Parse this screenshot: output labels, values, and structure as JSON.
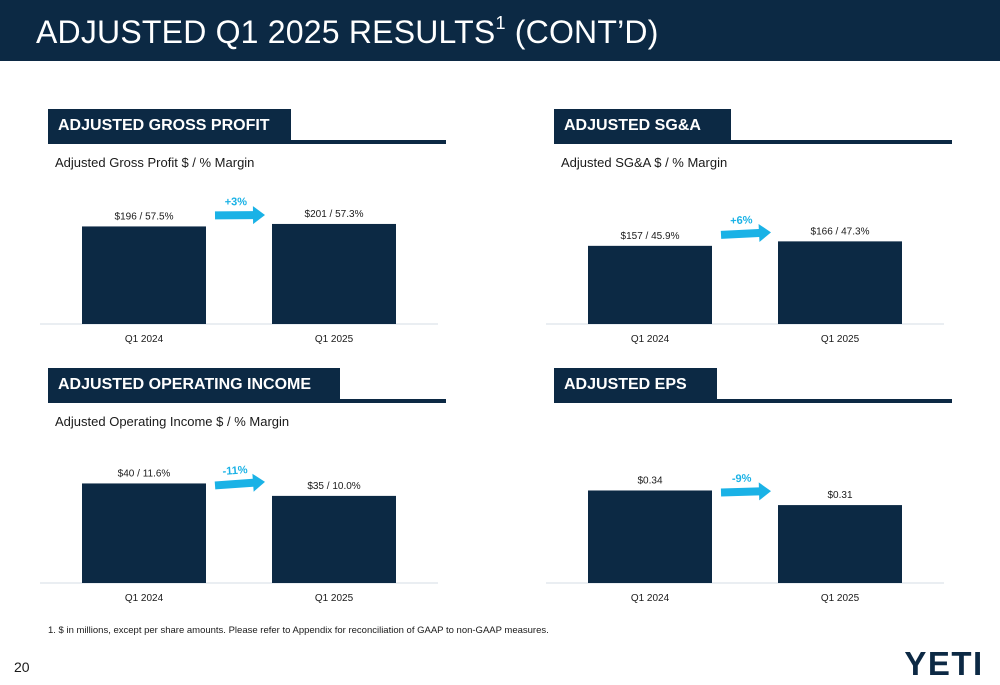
{
  "header": {
    "title": "ADJUSTED Q1 2025 RESULTS",
    "title_sup": "1",
    "title_suffix": " (CONT’D)"
  },
  "panels": [
    {
      "heading": "ADJUSTED GROSS PROFIT",
      "subtitle": "Adjusted Gross Profit $ / % Margin"
    },
    {
      "heading": "ADJUSTED SG&A",
      "subtitle": "Adjusted SG&A $ / % Margin"
    },
    {
      "heading": "ADJUSTED OPERATING INCOME",
      "subtitle": "Adjusted Operating Income $ / % Margin"
    },
    {
      "heading": "ADJUSTED EPS",
      "subtitle": ""
    }
  ],
  "chart_data": [
    {
      "type": "bar",
      "categories": [
        "Q1 2024",
        "Q1 2025"
      ],
      "values": [
        196,
        201
      ],
      "data_labels": [
        "$196 / 57.5%",
        "$201 / 57.3%"
      ],
      "change_label": "+3%",
      "change_direction": "up",
      "ylim": [
        0,
        225
      ],
      "grid": false
    },
    {
      "type": "bar",
      "categories": [
        "Q1 2024",
        "Q1 2025"
      ],
      "values": [
        157,
        166
      ],
      "data_labels": [
        "$157 / 45.9%",
        "$166 / 47.3%"
      ],
      "change_label": "+6%",
      "change_direction": "up",
      "ylim": [
        0,
        225
      ],
      "grid": false
    },
    {
      "type": "bar",
      "categories": [
        "Q1 2024",
        "Q1 2025"
      ],
      "values": [
        40,
        35
      ],
      "data_labels": [
        "$40 / 11.6%",
        "$35 / 10.0%"
      ],
      "change_label": "-11%",
      "change_direction": "down",
      "ylim": [
        0,
        45
      ],
      "grid": false
    },
    {
      "type": "bar",
      "categories": [
        "Q1 2024",
        "Q1 2025"
      ],
      "values": [
        0.34,
        0.31
      ],
      "data_labels": [
        "$0.34",
        "$0.31"
      ],
      "change_label": "-9%",
      "change_direction": "down",
      "ylim": [
        0.15,
        0.38
      ],
      "grid": false
    }
  ],
  "footnote": "1. $ in millions, except per share amounts.  Please refer to Appendix for reconciliation of GAAP to non-GAAP measures.",
  "page_number": "20",
  "logo_text": "YETI",
  "colors": {
    "navy": "#0c2944",
    "accent": "#1ab2e6",
    "axis": "#d5dde6"
  }
}
